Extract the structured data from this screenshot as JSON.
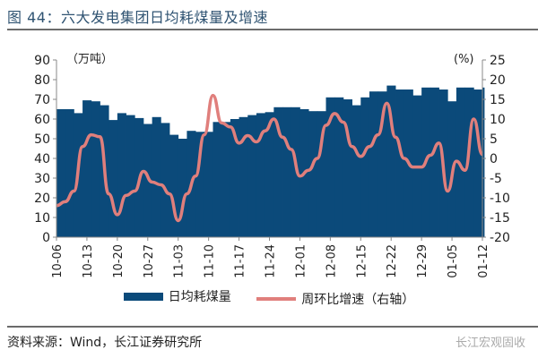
{
  "title": "图 44：六大发电集团日均耗煤量及增速",
  "source": "资料来源：Wind，长江证券研究所",
  "watermark": "长江宏观固收",
  "colors": {
    "bars": "#0b4a7a",
    "line": "#e07f7c",
    "title": "#2f5372"
  },
  "chart_data": {
    "type": "bar+line",
    "y_left_unit": "（万吨）",
    "y_right_unit": "(%)",
    "ylim_left": [
      0,
      90
    ],
    "yticks_left": [
      0,
      10,
      20,
      30,
      40,
      50,
      60,
      70,
      80,
      90
    ],
    "ylim_right": [
      -20,
      25
    ],
    "yticks_right": [
      -20,
      -15,
      -10,
      -5,
      0,
      5,
      10,
      15,
      20,
      25
    ],
    "xticks": [
      "10-06",
      "10-13",
      "10-20",
      "10-27",
      "11-03",
      "11-10",
      "11-17",
      "11-24",
      "12-01",
      "12-08",
      "12-15",
      "12-22",
      "12-29",
      "01-05",
      "01-12"
    ],
    "grid": false,
    "legend_position": "bottom",
    "x": [
      "10-06",
      "10-08",
      "10-10",
      "10-12",
      "10-14",
      "10-16",
      "10-18",
      "10-20",
      "10-22",
      "10-24",
      "10-26",
      "10-28",
      "10-30",
      "11-01",
      "11-03",
      "11-05",
      "11-07",
      "11-09",
      "11-11",
      "11-13",
      "11-15",
      "11-17",
      "11-19",
      "11-21",
      "11-23",
      "11-25",
      "11-27",
      "11-29",
      "12-01",
      "12-03",
      "12-05",
      "12-07",
      "12-09",
      "12-11",
      "12-13",
      "12-15",
      "12-17",
      "12-19",
      "12-21",
      "12-23",
      "12-25",
      "12-27",
      "12-29",
      "12-31",
      "01-02",
      "01-04",
      "01-06",
      "01-08",
      "01-10",
      "01-12"
    ],
    "series": [
      {
        "name": "日均耗煤量",
        "type": "bar",
        "axis": "left",
        "values": [
          65,
          65,
          63,
          69.5,
          69,
          67,
          59.5,
          63,
          62,
          60.5,
          57.5,
          61,
          58,
          52,
          50,
          54,
          53.5,
          53.5,
          58.5,
          58.5,
          60,
          61,
          62,
          63,
          63.5,
          66,
          66,
          66,
          65,
          64,
          64,
          71,
          71,
          70,
          67,
          71,
          74,
          74,
          77,
          75,
          75,
          72,
          76,
          76,
          75,
          69,
          76,
          76,
          75,
          76
        ]
      },
      {
        "name": "周环比增速（右轴）",
        "type": "line",
        "axis": "right",
        "values": [
          -12,
          -11,
          -8.3,
          3,
          6,
          5.5,
          -9,
          -14.3,
          -9.4,
          -8.3,
          -3.3,
          -6,
          -6.7,
          -9,
          -15.8,
          -9,
          -4.5,
          6,
          16,
          9,
          8,
          3.9,
          5.8,
          4.2,
          7,
          10,
          5.4,
          2.3,
          -4.5,
          -3,
          0,
          8.4,
          11.4,
          9.2,
          3,
          0.5,
          3,
          6,
          14,
          5.4,
          0,
          -2.2,
          -2.2,
          0.8,
          3.9,
          -8.3,
          -0.7,
          -3,
          10,
          1
        ]
      }
    ]
  }
}
